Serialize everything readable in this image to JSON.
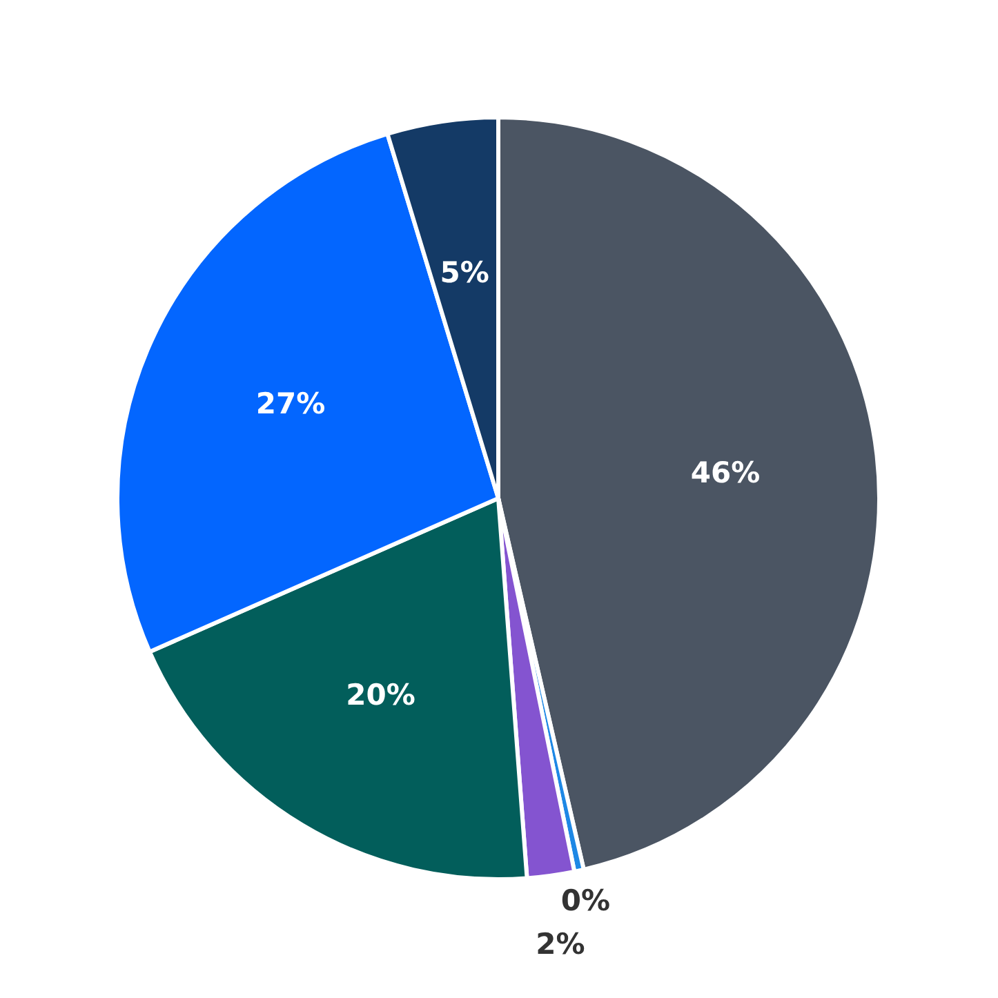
{
  "chart_data": {
    "type": "pie",
    "categories": [
      null,
      null,
      null,
      null,
      null,
      null
    ],
    "values": [
      46.4,
      0.4,
      2.0,
      19.6,
      26.9,
      4.7
    ],
    "colors": [
      "#4b5563",
      "#1e88e5",
      "#8454d0",
      "#025e5b",
      "#0366ff",
      "#143a66"
    ],
    "value_labels": [
      "46%",
      "0%",
      "2%",
      "20%",
      "27%",
      "5%"
    ]
  }
}
